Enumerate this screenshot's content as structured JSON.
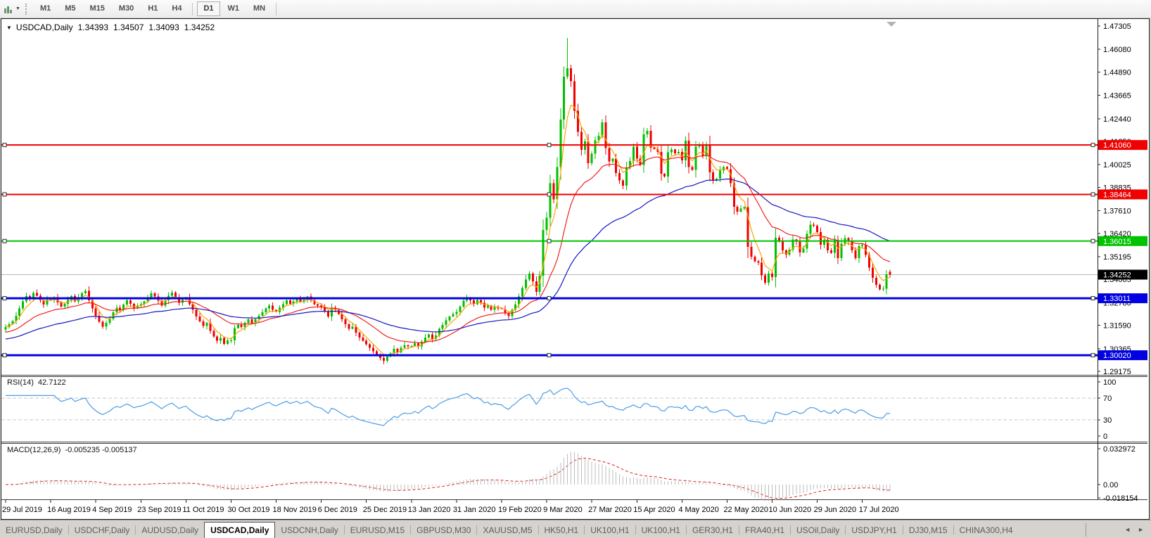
{
  "toolbar": {
    "timeframes": [
      "M1",
      "M5",
      "M15",
      "M30",
      "H1",
      "H4",
      "D1",
      "W1",
      "MN"
    ],
    "active_timeframe": "D1"
  },
  "chart_header": {
    "symbol_period": "USDCAD,Daily",
    "open": "1.34393",
    "high": "1.34507",
    "low": "1.34093",
    "close": "1.34252"
  },
  "colors": {
    "bull": "#00c000",
    "bear": "#f00000",
    "ma_fast": "#ffa200",
    "ma_mid": "#f02020",
    "ma_slow": "#1818c0",
    "hline_red": "#f00000",
    "hline_green": "#00c400",
    "hline_blue": "#0000e0",
    "bid_line": "#b8b8b8",
    "bid_badge": "#000000",
    "rsi_line": "#4a9ce8",
    "macd_histogram": "#bdbdbd",
    "macd_signal": "#e02020"
  },
  "chart_data": [
    {
      "type": "candlestick",
      "symbol": "USDCAD",
      "timeframe": "Daily",
      "y_axis_ticks": [
        "1.47305",
        "1.46080",
        "1.44890",
        "1.43665",
        "1.42440",
        "1.41250",
        "1.40025",
        "1.38835",
        "1.37610",
        "1.36420",
        "1.35195",
        "1.34005",
        "1.32780",
        "1.31590",
        "1.30365",
        "1.29175"
      ],
      "y_axis_range": [
        1.29175,
        1.47305
      ],
      "time_labels": [
        "29 Jul 2019",
        "16 Aug 2019",
        "4 Sep 2019",
        "23 Sep 2019",
        "11 Oct 2019",
        "30 Oct 2019",
        "18 Nov 2019",
        "6 Dec 2019",
        "25 Dec 2019",
        "13 Jan 2020",
        "31 Jan 2020",
        "19 Feb 2020",
        "9 Mar 2020",
        "27 Mar 2020",
        "15 Apr 2020",
        "4 May 2020",
        "22 May 2020",
        "10 Jun 2020",
        "29 Jun 2020",
        "17 Jul 2020"
      ],
      "time_label_candle_indices": [
        0,
        13,
        26,
        39,
        52,
        65,
        78,
        91,
        104,
        117,
        130,
        143,
        156,
        169,
        182,
        195,
        208,
        221,
        234,
        247
      ],
      "first_open": 1.3138,
      "closes": [
        1.315,
        1.3165,
        1.3182,
        1.321,
        1.3248,
        1.3285,
        1.3312,
        1.33,
        1.333,
        1.3315,
        1.329,
        1.3268,
        1.3295,
        1.329,
        1.3305,
        1.328,
        1.3258,
        1.3272,
        1.3292,
        1.3312,
        1.3285,
        1.3305,
        1.3328,
        1.334,
        1.329,
        1.3248,
        1.321,
        1.3178,
        1.3152,
        1.3172,
        1.3192,
        1.3228,
        1.3252,
        1.324,
        1.3268,
        1.329,
        1.3272,
        1.3248,
        1.3262,
        1.327,
        1.3285,
        1.3305,
        1.3328,
        1.331,
        1.3288,
        1.3262,
        1.329,
        1.3315,
        1.3332,
        1.3305,
        1.3278,
        1.3295,
        1.3305,
        1.327,
        1.324,
        1.3205,
        1.318,
        1.3155,
        1.3172,
        1.313,
        1.31,
        1.3078,
        1.3092,
        1.3062,
        1.308,
        1.308,
        1.3145,
        1.3162,
        1.315,
        1.3172,
        1.319,
        1.317,
        1.3192,
        1.321,
        1.3228,
        1.3248,
        1.3262,
        1.324,
        1.323,
        1.3252,
        1.327,
        1.329,
        1.3272,
        1.3285,
        1.33,
        1.3282,
        1.3295,
        1.331,
        1.329,
        1.327,
        1.3262,
        1.3255,
        1.3232,
        1.3205,
        1.3252,
        1.324,
        1.3218,
        1.319,
        1.3165,
        1.314,
        1.3152,
        1.312,
        1.3095,
        1.3078,
        1.306,
        1.3042,
        1.3022,
        1.3005,
        1.2988,
        1.2972,
        1.2995,
        1.3012,
        1.3035,
        1.3018,
        1.3042,
        1.3055,
        1.3048,
        1.305,
        1.3065,
        1.3048,
        1.3072,
        1.3095,
        1.3112,
        1.3088,
        1.3105,
        1.314,
        1.3162,
        1.3185,
        1.3205,
        1.3218,
        1.323,
        1.3258,
        1.3288,
        1.3305,
        1.329,
        1.327,
        1.3292,
        1.3278,
        1.3252,
        1.3262,
        1.324,
        1.3255,
        1.3248,
        1.3245,
        1.3222,
        1.3208,
        1.324,
        1.3268,
        1.331,
        1.3355,
        1.34,
        1.343,
        1.339,
        1.3335,
        1.342,
        1.366,
        1.3725,
        1.3905,
        1.382,
        1.399,
        1.424,
        1.4465,
        1.451,
        1.444,
        1.4285,
        1.4175,
        1.408,
        1.4125,
        1.401,
        1.406,
        1.413,
        1.4155,
        1.4225,
        1.409,
        1.402,
        1.4035,
        1.3958,
        1.392,
        1.3892,
        1.3988,
        1.4022,
        1.4098,
        1.4035,
        1.4002,
        1.4162,
        1.418,
        1.4092,
        1.4085,
        1.407,
        1.3955,
        1.394,
        1.4068,
        1.4082,
        1.4062,
        1.407,
        1.4025,
        1.4128,
        1.399,
        1.3975,
        1.4098,
        1.4105,
        1.4048,
        1.4108,
        1.3962,
        1.3918,
        1.393,
        1.3972,
        1.399,
        1.398,
        1.3905,
        1.3782,
        1.3755,
        1.3772,
        1.378,
        1.3572,
        1.352,
        1.3495,
        1.3488,
        1.3422,
        1.3382,
        1.343,
        1.3412,
        1.362,
        1.3598,
        1.3552,
        1.353,
        1.3556,
        1.361,
        1.3598,
        1.3542,
        1.3562,
        1.364,
        1.3688,
        1.3682,
        1.3648,
        1.3582,
        1.3608,
        1.3552,
        1.354,
        1.3608,
        1.3512,
        1.3588,
        1.3618,
        1.3598,
        1.3552,
        1.3512,
        1.3575,
        1.358,
        1.3528,
        1.3462,
        1.3408,
        1.3372,
        1.3348,
        1.3352,
        1.3428,
        1.34252
      ],
      "spike_high": {
        "index": 162,
        "price": 1.4668
      },
      "last_candle_ohlc": [
        1.34393,
        1.34507,
        1.34093,
        1.34252
      ],
      "moving_averages": [
        {
          "name": "fast",
          "period": 5,
          "color": "#ffa200"
        },
        {
          "name": "medium",
          "period": 21,
          "color": "#f02020"
        },
        {
          "name": "slow",
          "period": 55,
          "color": "#1818c0"
        }
      ],
      "horizontal_lines": [
        {
          "label": "1.41060",
          "price": 1.4106,
          "color": "#f00000",
          "width": 2
        },
        {
          "label": "1.38464",
          "price": 1.38464,
          "color": "#f00000",
          "width": 2
        },
        {
          "label": "1.36015",
          "price": 1.36015,
          "color": "#00c400",
          "width": 2
        },
        {
          "label": "1.33011",
          "price": 1.33011,
          "color": "#0000e0",
          "width": 3
        },
        {
          "label": "1.30020",
          "price": 1.3002,
          "color": "#0000e0",
          "width": 3
        }
      ],
      "current_price": {
        "label": "1.34252",
        "price": 1.34252
      }
    },
    {
      "type": "line",
      "name": "RSI",
      "params": "RSI(14)",
      "current_value": "42.7122",
      "period": 14,
      "levels": [
        70,
        30
      ],
      "axis_labels": [
        "100",
        "70",
        "30",
        "0"
      ],
      "derived": "RSI(14) computed from closes"
    },
    {
      "type": "bar",
      "name": "MACD",
      "params": "MACD(12,26,9)",
      "current_values": "-0.005235 -0.005137",
      "fast": 12,
      "slow": 26,
      "signal": 9,
      "axis_labels": [
        "0.032972",
        "0.00",
        "-0.018154"
      ],
      "derived": "histogram = EMA12-EMA26 of closes, signal = EMA9 of histogram"
    }
  ],
  "tab_bar": {
    "tabs": [
      "EURUSD,Daily",
      "USDCHF,Daily",
      "AUDUSD,Daily",
      "USDCAD,Daily",
      "USDCNH,Daily",
      "EURUSD,M15",
      "GBPUSD,M30",
      "XAUUSD,M5",
      "HK50,H1",
      "UK100,H1",
      "UK100,H1",
      "GER30,H1",
      "FRA40,H1",
      "USOil,Daily",
      "USDJPY,H1",
      "DJ30,M15",
      "CHINA300,H4"
    ],
    "active_index": 3,
    "left_arrow": "◄",
    "right_arrow": "►"
  }
}
